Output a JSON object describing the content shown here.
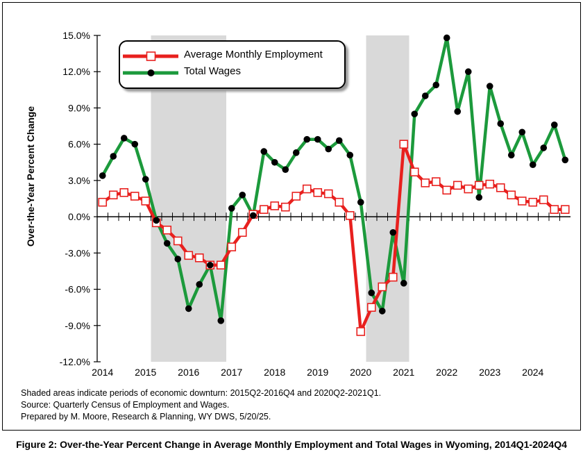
{
  "chart_data": {
    "type": "line",
    "ylabel": "Over-the-Year Percent Change",
    "ylim": [
      -12.0,
      15.0
    ],
    "yticks": [
      "15.0%",
      "12.0%",
      "9.0%",
      "6.0%",
      "3.0%",
      "0.0%",
      "-3.0%",
      "-6.0%",
      "-9.0%",
      "-12.0%"
    ],
    "ytick_values": [
      15,
      12,
      9,
      6,
      3,
      0,
      -3,
      -6,
      -9,
      -12
    ],
    "xticks": [
      "2014",
      "2015",
      "2016",
      "2017",
      "2018",
      "2019",
      "2020",
      "2021",
      "2022",
      "2023",
      "2024"
    ],
    "grid": false,
    "legend_position": "top-left",
    "shaded_periods": [
      {
        "start": "2015Q2",
        "end": "2016Q4"
      },
      {
        "start": "2020Q2",
        "end": "2021Q1"
      }
    ],
    "quarters": [
      "2014Q1",
      "2014Q2",
      "2014Q3",
      "2014Q4",
      "2015Q1",
      "2015Q2",
      "2015Q3",
      "2015Q4",
      "2016Q1",
      "2016Q2",
      "2016Q3",
      "2016Q4",
      "2017Q1",
      "2017Q2",
      "2017Q3",
      "2017Q4",
      "2018Q1",
      "2018Q2",
      "2018Q3",
      "2018Q4",
      "2019Q1",
      "2019Q2",
      "2019Q3",
      "2019Q4",
      "2020Q1",
      "2020Q2",
      "2020Q3",
      "2020Q4",
      "2021Q1",
      "2021Q2",
      "2021Q3",
      "2021Q4",
      "2022Q1",
      "2022Q2",
      "2022Q3",
      "2022Q4",
      "2023Q1",
      "2023Q2",
      "2023Q3",
      "2023Q4",
      "2024Q1",
      "2024Q2",
      "2024Q3",
      "2024Q4"
    ],
    "series": [
      {
        "name": "Average Monthly Employment",
        "color": "#e8201e",
        "marker": "open-square",
        "values": [
          1.2,
          1.8,
          2.0,
          1.7,
          1.3,
          -0.5,
          -1.1,
          -2.0,
          -3.2,
          -3.4,
          -4.0,
          -4.0,
          -2.5,
          -1.3,
          0.2,
          0.6,
          0.9,
          0.8,
          1.7,
          2.3,
          2.0,
          1.9,
          1.2,
          0.1,
          -9.5,
          -7.5,
          -5.8,
          -5.0,
          6.0,
          3.7,
          2.8,
          2.9,
          2.2,
          2.6,
          2.3,
          2.6,
          2.7,
          2.4,
          1.8,
          1.3,
          1.2,
          1.4,
          0.6,
          0.6
        ]
      },
      {
        "name": "Total Wages",
        "color": "#1c9a3c",
        "marker": "filled-circle",
        "values": [
          3.4,
          5.0,
          6.5,
          6.0,
          3.1,
          -0.3,
          -2.2,
          -3.5,
          -7.6,
          -5.6,
          -4.0,
          -8.6,
          0.7,
          1.8,
          0.1,
          5.4,
          4.5,
          3.9,
          5.3,
          6.4,
          6.4,
          5.6,
          6.3,
          5.1,
          1.2,
          -6.3,
          -7.8,
          -1.3,
          -5.5,
          8.5,
          10.0,
          10.9,
          14.8,
          8.7,
          12.0,
          1.6,
          10.8,
          7.7,
          5.1,
          7.0,
          4.3,
          5.7,
          7.6,
          4.7
        ]
      }
    ]
  },
  "notes": {
    "line1": "Shaded areas indicate periods of economic downturn: 2015Q2-2016Q4 and 2020Q2-2021Q1.",
    "line2": "Source: Quarterly Census of Employment and Wages.",
    "line3": "Prepared by M. Moore, Research & Planning, WY DWS, 5/20/25."
  },
  "caption": "Figure 2: Over-the-Year Percent Change in Average Monthly Employment and Total Wages in Wyoming, 2014Q1-2024Q4"
}
